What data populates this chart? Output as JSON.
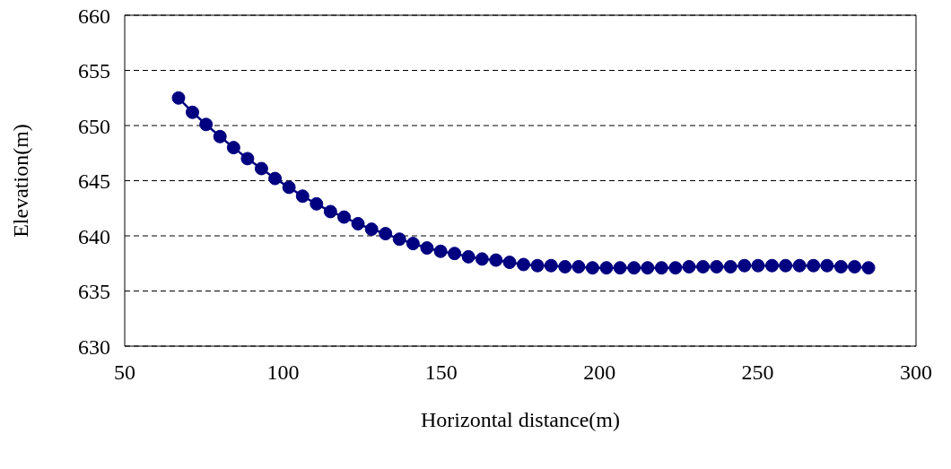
{
  "chart_data": {
    "type": "line",
    "xlabel": "Horizontal distance(m)",
    "ylabel": "Elevation(m)",
    "x": [
      67.0,
      71.4,
      75.7,
      80.1,
      84.4,
      88.8,
      93.2,
      97.5,
      101.9,
      106.2,
      110.6,
      115.0,
      119.3,
      123.7,
      128.0,
      132.4,
      136.8,
      141.1,
      145.5,
      149.8,
      154.2,
      158.6,
      162.9,
      167.3,
      171.6,
      176.0,
      180.4,
      184.7,
      189.1,
      193.4,
      197.8,
      202.2,
      206.5,
      210.9,
      215.2,
      219.6,
      224.0,
      228.3,
      232.7,
      237.0,
      241.4,
      245.8,
      250.1,
      254.5,
      258.8,
      263.2,
      267.6,
      271.9,
      276.3,
      280.6,
      285.0
    ],
    "series": [
      {
        "color": "#000080",
        "values": [
          652.5,
          651.2,
          650.1,
          649.0,
          648.0,
          647.0,
          646.1,
          645.2,
          644.4,
          643.6,
          642.9,
          642.2,
          641.7,
          641.1,
          640.6,
          640.2,
          639.7,
          639.3,
          638.9,
          638.6,
          638.4,
          638.1,
          637.9,
          637.8,
          637.6,
          637.4,
          637.3,
          637.3,
          637.2,
          637.2,
          637.1,
          637.1,
          637.1,
          637.1,
          637.1,
          637.1,
          637.1,
          637.2,
          637.2,
          637.2,
          637.2,
          637.3,
          637.3,
          637.3,
          637.3,
          637.3,
          637.3,
          637.3,
          637.2,
          637.2,
          637.1
        ]
      }
    ],
    "xlim": [
      50,
      300
    ],
    "xticks": [
      50,
      100,
      150,
      200,
      250,
      300
    ],
    "ylim": [
      630,
      660
    ],
    "yticks": [
      630,
      635,
      640,
      645,
      650,
      655,
      660
    ],
    "grid": "y",
    "marker": "circle",
    "line_style": "solid"
  }
}
